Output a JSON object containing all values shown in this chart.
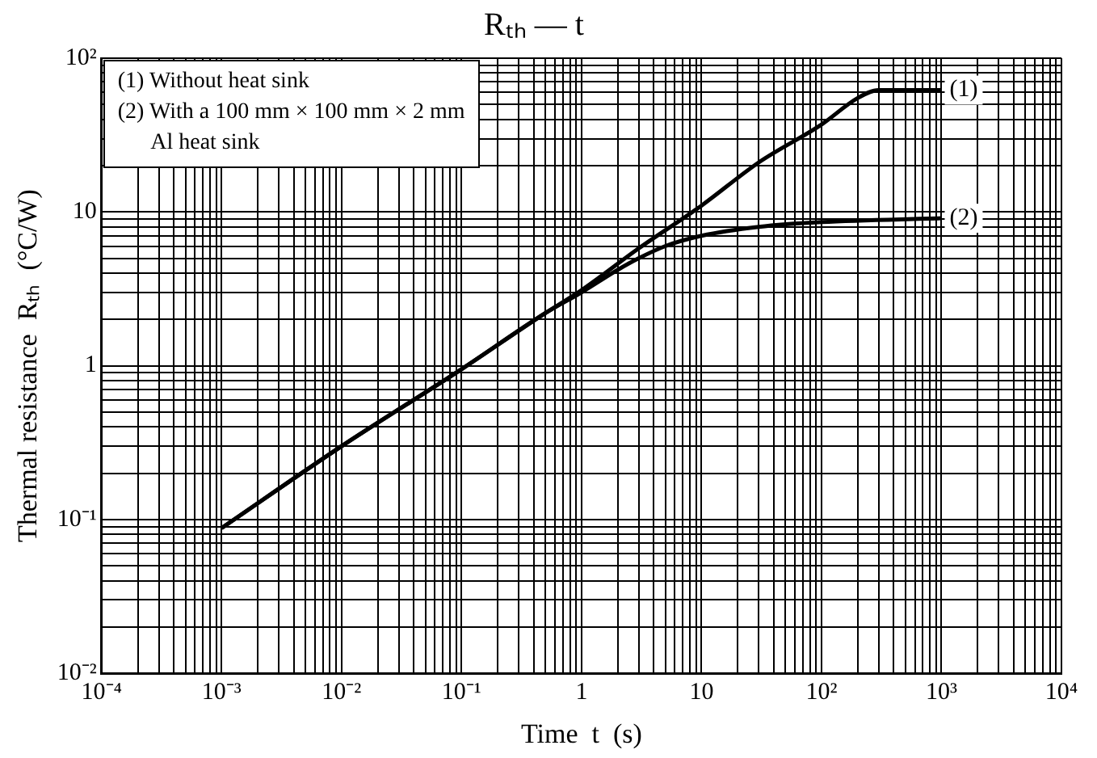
{
  "chart_data": {
    "type": "line",
    "title": "Rₜₕ — t",
    "xlabel": "Time  t  (s)",
    "ylabel": "Thermal resistance  Rₜₕ  (°C/W)",
    "log": "xy",
    "grid": true,
    "legend": false,
    "marker": "none",
    "line_style": "solid",
    "xlim": [
      0.0001,
      10000
    ],
    "ylim": [
      0.01,
      100
    ],
    "xticks": [
      {
        "value": 0.0001,
        "label": "10⁻⁴"
      },
      {
        "value": 0.0002,
        "label": null
      },
      {
        "value": 0.0003,
        "label": null
      },
      {
        "value": 0.0004,
        "label": null
      },
      {
        "value": 0.0005,
        "label": null
      },
      {
        "value": 0.0006,
        "label": null
      },
      {
        "value": 0.0007,
        "label": null
      },
      {
        "value": 0.0008,
        "label": null
      },
      {
        "value": 0.0009,
        "label": null
      },
      {
        "value": 0.001,
        "label": "10⁻³"
      },
      {
        "value": 0.002,
        "label": null
      },
      {
        "value": 0.003,
        "label": null
      },
      {
        "value": 0.004,
        "label": null
      },
      {
        "value": 0.005,
        "label": null
      },
      {
        "value": 0.006,
        "label": null
      },
      {
        "value": 0.007,
        "label": null
      },
      {
        "value": 0.008,
        "label": null
      },
      {
        "value": 0.009,
        "label": null
      },
      {
        "value": 0.01,
        "label": "10⁻²"
      },
      {
        "value": 0.02,
        "label": null
      },
      {
        "value": 0.03,
        "label": null
      },
      {
        "value": 0.04,
        "label": null
      },
      {
        "value": 0.05,
        "label": null
      },
      {
        "value": 0.06,
        "label": null
      },
      {
        "value": 0.07,
        "label": null
      },
      {
        "value": 0.08,
        "label": null
      },
      {
        "value": 0.09,
        "label": null
      },
      {
        "value": 0.1,
        "label": "10⁻¹"
      },
      {
        "value": 0.2,
        "label": null
      },
      {
        "value": 0.3,
        "label": null
      },
      {
        "value": 0.4,
        "label": null
      },
      {
        "value": 0.5,
        "label": null
      },
      {
        "value": 0.6,
        "label": null
      },
      {
        "value": 0.7,
        "label": null
      },
      {
        "value": 0.8,
        "label": null
      },
      {
        "value": 0.9,
        "label": null
      },
      1,
      {
        "value": 2,
        "label": null
      },
      {
        "value": 3,
        "label": null
      },
      {
        "value": 4,
        "label": null
      },
      {
        "value": 5,
        "label": null
      },
      {
        "value": 6,
        "label": null
      },
      {
        "value": 7,
        "label": null
      },
      {
        "value": 8,
        "label": null
      },
      {
        "value": 9,
        "label": null
      },
      10,
      {
        "value": 20,
        "label": null
      },
      {
        "value": 30,
        "label": null
      },
      {
        "value": 40,
        "label": null
      },
      {
        "value": 50,
        "label": null
      },
      {
        "value": 60,
        "label": null
      },
      {
        "value": 70,
        "label": null
      },
      {
        "value": 80,
        "label": null
      },
      {
        "value": 90,
        "label": null
      },
      {
        "value": 100,
        "label": "10²"
      },
      {
        "value": 200,
        "label": null
      },
      {
        "value": 300,
        "label": null
      },
      {
        "value": 400,
        "label": null
      },
      {
        "value": 500,
        "label": null
      },
      {
        "value": 600,
        "label": null
      },
      {
        "value": 700,
        "label": null
      },
      {
        "value": 800,
        "label": null
      },
      {
        "value": 900,
        "label": null
      },
      {
        "value": 1000,
        "label": "10³"
      },
      {
        "value": 2000,
        "label": null
      },
      {
        "value": 3000,
        "label": null
      },
      {
        "value": 4000,
        "label": null
      },
      {
        "value": 5000,
        "label": null
      },
      {
        "value": 6000,
        "label": null
      },
      {
        "value": 7000,
        "label": null
      },
      {
        "value": 8000,
        "label": null
      },
      {
        "value": 9000,
        "label": null
      },
      {
        "value": 10000,
        "label": "10⁴"
      }
    ],
    "yticks": [
      {
        "value": 0.01,
        "label": "10⁻²"
      },
      {
        "value": 0.02,
        "label": null
      },
      {
        "value": 0.03,
        "label": null
      },
      {
        "value": 0.04,
        "label": null
      },
      {
        "value": 0.05,
        "label": null
      },
      {
        "value": 0.06,
        "label": null
      },
      {
        "value": 0.07,
        "label": null
      },
      {
        "value": 0.08,
        "label": null
      },
      {
        "value": 0.09,
        "label": null
      },
      {
        "value": 0.1,
        "label": "10⁻¹"
      },
      {
        "value": 0.2,
        "label": null
      },
      {
        "value": 0.3,
        "label": null
      },
      {
        "value": 0.4,
        "label": null
      },
      {
        "value": 0.5,
        "label": null
      },
      {
        "value": 0.6,
        "label": null
      },
      {
        "value": 0.7,
        "label": null
      },
      {
        "value": 0.8,
        "label": null
      },
      {
        "value": 0.9,
        "label": null
      },
      1,
      {
        "value": 2,
        "label": null
      },
      {
        "value": 3,
        "label": null
      },
      {
        "value": 4,
        "label": null
      },
      {
        "value": 5,
        "label": null
      },
      {
        "value": 6,
        "label": null
      },
      {
        "value": 7,
        "label": null
      },
      {
        "value": 8,
        "label": null
      },
      {
        "value": 9,
        "label": null
      },
      10,
      {
        "value": 20,
        "label": null
      },
      {
        "value": 30,
        "label": null
      },
      {
        "value": 40,
        "label": null
      },
      {
        "value": 50,
        "label": null
      },
      {
        "value": 60,
        "label": null
      },
      {
        "value": 70,
        "label": null
      },
      {
        "value": 80,
        "label": null
      },
      {
        "value": 90,
        "label": null
      },
      {
        "value": 100,
        "label": "10²"
      }
    ],
    "series": [
      {
        "color": "#000000",
        "x": [
          0.001,
          0.01,
          0.1,
          0.5,
          1,
          3,
          10,
          30,
          100,
          200,
          300,
          1000
        ],
        "values": [
          0.088,
          0.3,
          0.95,
          2.2,
          3.1,
          5.8,
          11,
          21,
          37,
          55,
          62,
          62
        ]
      },
      {
        "color": "#000000",
        "x": [
          0.001,
          0.01,
          0.1,
          0.5,
          1,
          2,
          3,
          5,
          10,
          30,
          100,
          1000
        ],
        "values": [
          0.088,
          0.3,
          0.95,
          2.2,
          3.0,
          4.2,
          5.0,
          6.0,
          7.0,
          8.0,
          8.6,
          9.1
        ]
      }
    ],
    "annotations": [
      "(1) Without heat sink",
      "(2) With a 100 mm × 100 mm × 2 mm\n      Al heat sink",
      {
        "text": "(1)",
        "x": 1000,
        "y": 62
      },
      {
        "text": "(2)",
        "x": 1000,
        "y": 9.1
      }
    ]
  }
}
